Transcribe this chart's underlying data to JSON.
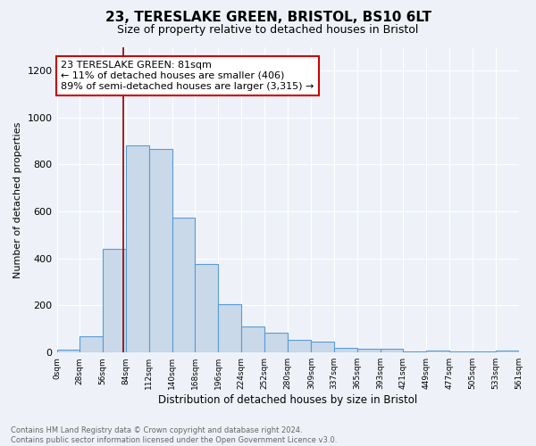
{
  "title1": "23, TERESLAKE GREEN, BRISTOL, BS10 6LT",
  "title2": "Size of property relative to detached houses in Bristol",
  "xlabel": "Distribution of detached houses by size in Bristol",
  "ylabel": "Number of detached properties",
  "bar_edges": [
    0,
    28,
    56,
    84,
    112,
    140,
    168,
    196,
    224,
    252,
    280,
    309,
    337,
    365,
    393,
    421,
    449,
    477,
    505,
    533,
    561
  ],
  "bar_heights": [
    12,
    68,
    440,
    880,
    865,
    575,
    375,
    205,
    110,
    85,
    55,
    45,
    20,
    17,
    15,
    4,
    8,
    4,
    4,
    10
  ],
  "bar_color": "#c9d9ea",
  "bar_edge_color": "#5b9bd5",
  "vline_x": 81,
  "vline_color": "#8b0000",
  "annotation_text": "23 TERESLAKE GREEN: 81sqm\n← 11% of detached houses are smaller (406)\n89% of semi-detached houses are larger (3,315) →",
  "annotation_box_color": "white",
  "annotation_box_edge": "#cc0000",
  "ylim": [
    0,
    1300
  ],
  "tick_labels": [
    "0sqm",
    "28sqm",
    "56sqm",
    "84sqm",
    "112sqm",
    "140sqm",
    "168sqm",
    "196sqm",
    "224sqm",
    "252sqm",
    "280sqm",
    "309sqm",
    "337sqm",
    "365sqm",
    "393sqm",
    "421sqm",
    "449sqm",
    "477sqm",
    "505sqm",
    "533sqm",
    "561sqm"
  ],
  "footnote": "Contains HM Land Registry data © Crown copyright and database right 2024.\nContains public sector information licensed under the Open Government Licence v3.0.",
  "bg_color": "#eef2f8",
  "grid_color": "white",
  "title1_fontsize": 11,
  "title2_fontsize": 9,
  "annotation_fontsize": 8,
  "ylabel_fontsize": 8,
  "xlabel_fontsize": 8.5,
  "footnote_fontsize": 6,
  "ytick_fontsize": 8,
  "xtick_fontsize": 6.5
}
